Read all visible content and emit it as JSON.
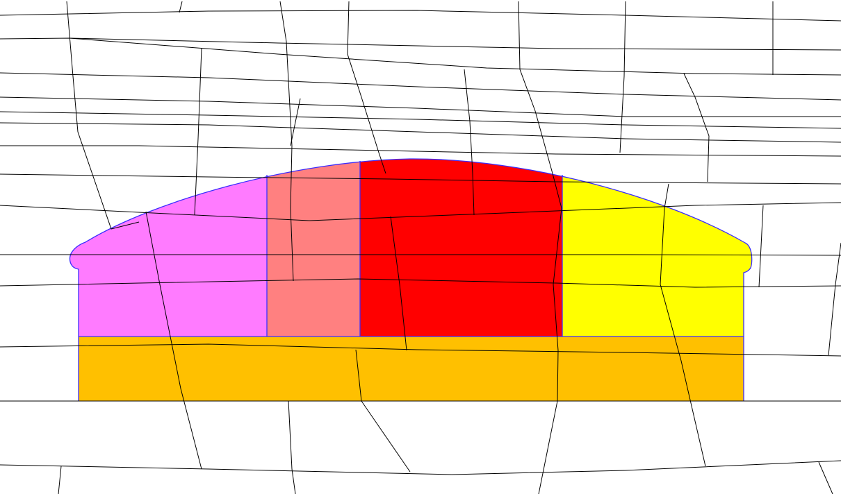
{
  "diagram": {
    "type": "colored-region-mesh",
    "colors": {
      "background": "#ffffff",
      "mesh_line": "#000000",
      "region_outline": "#3b2cff",
      "region_1": "#ff7bff",
      "region_2": "#ff8080",
      "region_3": "#ff0000",
      "region_4": "#ffff00",
      "base_region": "#ffc000"
    },
    "regions": [
      {
        "id": "region_1",
        "color_key": "region_1"
      },
      {
        "id": "region_2",
        "color_key": "region_2"
      },
      {
        "id": "region_3",
        "color_key": "region_3"
      },
      {
        "id": "region_4",
        "color_key": "region_4"
      },
      {
        "id": "base_region",
        "color_key": "base_region"
      }
    ]
  }
}
